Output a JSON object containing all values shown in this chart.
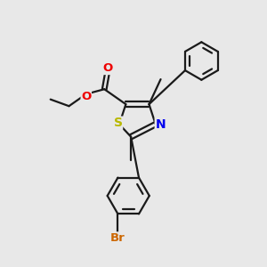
{
  "background_color": "#e8e8e8",
  "bond_color": "#1a1a1a",
  "S_color": "#b8b800",
  "N_color": "#0000ee",
  "O_color": "#ee0000",
  "Br_color": "#cc6600",
  "line_width": 1.6,
  "font_size": 8.5,
  "figsize": [
    3.0,
    3.0
  ],
  "dpi": 100,
  "xlim": [
    0,
    10
  ],
  "ylim": [
    0,
    10
  ]
}
